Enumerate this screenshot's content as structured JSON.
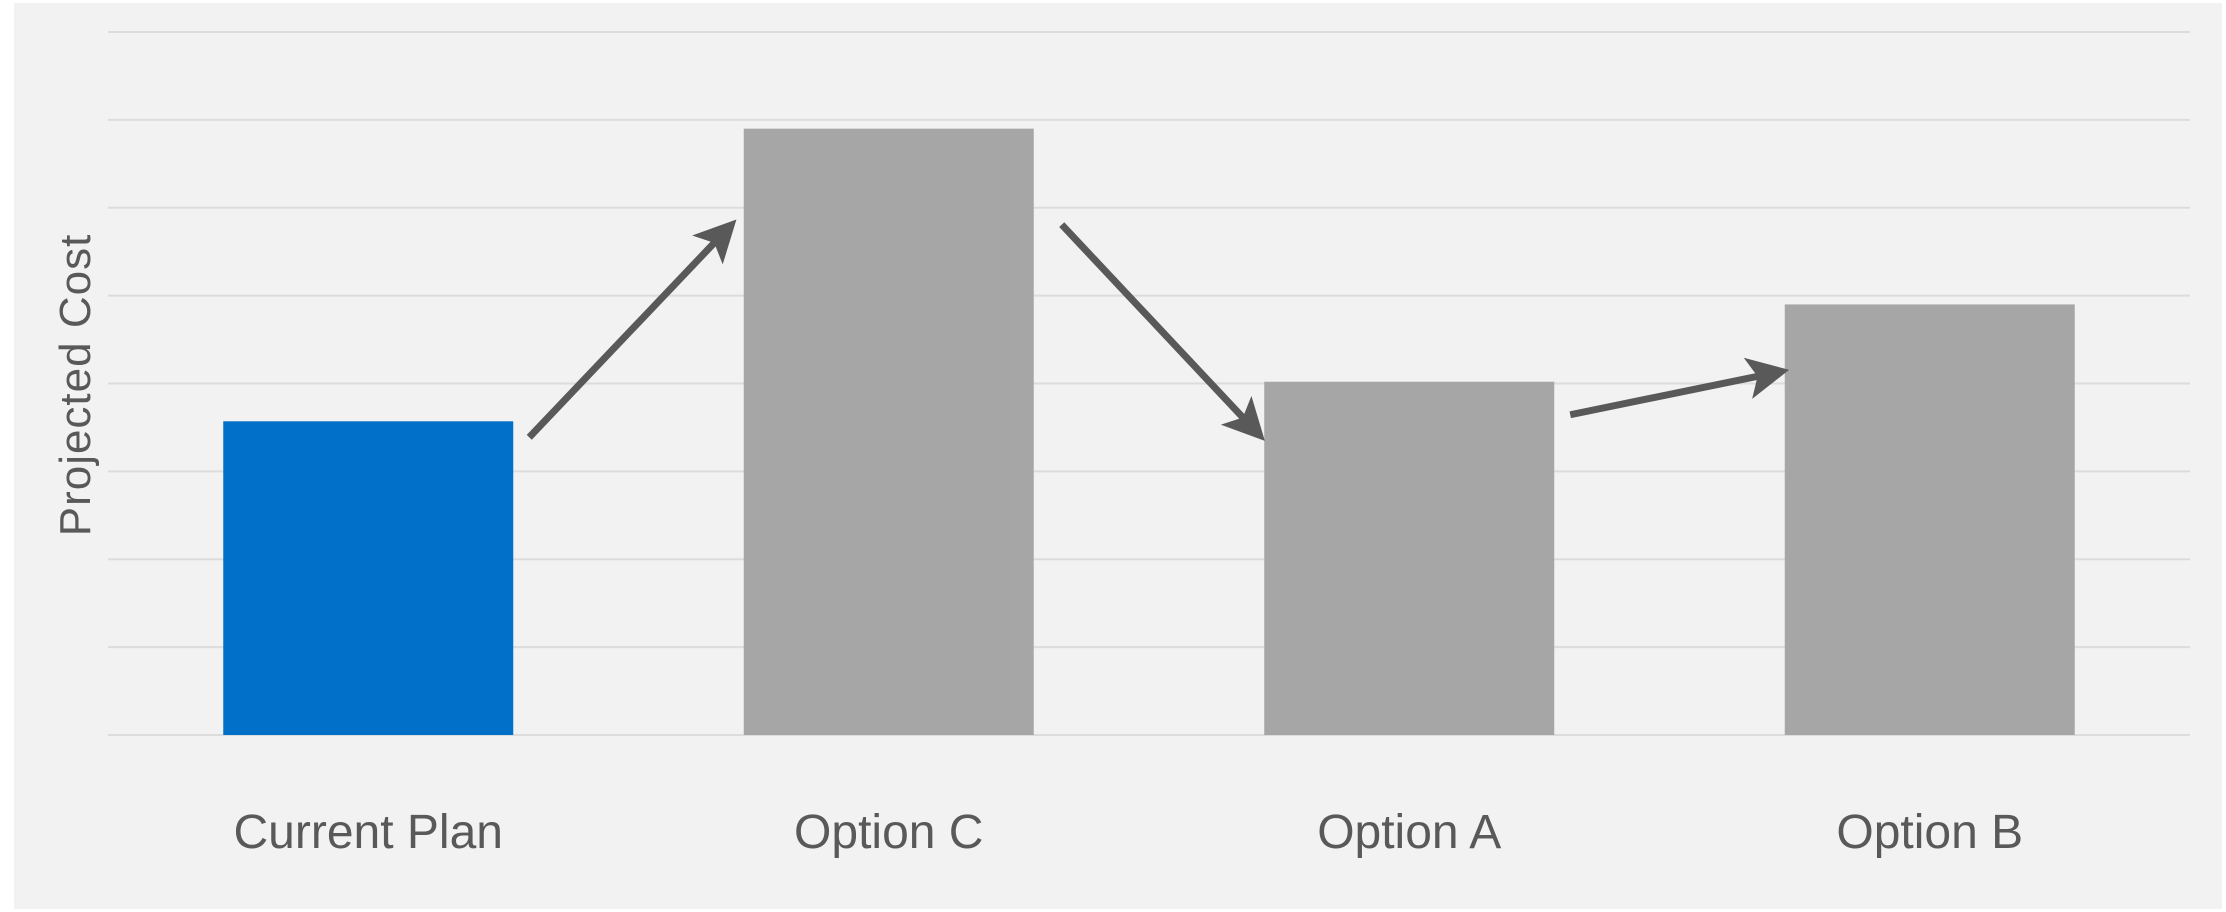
{
  "chart_data": {
    "type": "bar",
    "title": "",
    "xlabel": "",
    "ylabel": "Projected Cost",
    "categories": [
      "Current Plan",
      "Option C",
      "Option A",
      "Option B"
    ],
    "values": [
      3.57,
      6.9,
      4.02,
      4.9
    ],
    "ylim": [
      0,
      8
    ],
    "grid": true,
    "legend": "none",
    "ytick_labels_shown": false,
    "colors": {
      "highlight": "#0070C9",
      "default": "#A6A6A6",
      "background": "#F2F2F2",
      "gridline": "#DCDCDC",
      "text": "#595959",
      "arrow": "#595959"
    },
    "highlight_index": 0,
    "annotations": [
      {
        "type": "arrow",
        "from": "Current Plan",
        "to": "Option C",
        "direction": "up"
      },
      {
        "type": "arrow",
        "from": "Option C",
        "to": "Option A",
        "direction": "down"
      },
      {
        "type": "arrow",
        "from": "Option A",
        "to": "Option B",
        "direction": "up"
      }
    ]
  }
}
